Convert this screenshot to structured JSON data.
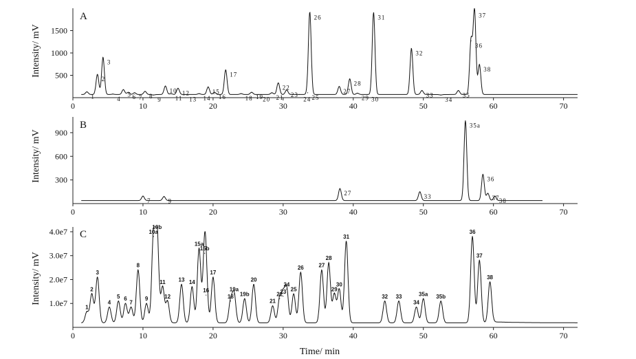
{
  "chart_data": [
    {
      "type": "line",
      "panel": "A",
      "ylabel": "Intensity/ mV",
      "xlim": [
        0,
        72
      ],
      "ylim": [
        0,
        2000
      ],
      "xticks": [
        0,
        10,
        20,
        30,
        40,
        50,
        60,
        70
      ],
      "yticks": [
        500,
        1000,
        1500
      ],
      "peaks": [
        {
          "label": "1",
          "x": 2.0,
          "y": 130
        },
        {
          "label": "2",
          "x": 3.5,
          "y": 520
        },
        {
          "label": "3",
          "x": 4.3,
          "y": 900
        },
        {
          "label": "4",
          "x": 5.7,
          "y": 80
        },
        {
          "label": "5",
          "x": 7.2,
          "y": 180
        },
        {
          "label": "6",
          "x": 7.9,
          "y": 120
        },
        {
          "label": "7",
          "x": 8.8,
          "y": 110
        },
        {
          "label": "8",
          "x": 10.3,
          "y": 140
        },
        {
          "label": "9",
          "x": 11.5,
          "y": 60
        },
        {
          "label": "10",
          "x": 13.2,
          "y": 260
        },
        {
          "label": "11",
          "x": 14.0,
          "y": 90
        },
        {
          "label": "12",
          "x": 15.0,
          "y": 210
        },
        {
          "label": "13",
          "x": 16.0,
          "y": 70
        },
        {
          "label": "14",
          "x": 18.0,
          "y": 90
        },
        {
          "label": "15",
          "x": 19.3,
          "y": 240
        },
        {
          "label": "16",
          "x": 20.2,
          "y": 120
        },
        {
          "label": "17",
          "x": 21.8,
          "y": 620
        },
        {
          "label": "18",
          "x": 24.0,
          "y": 90
        },
        {
          "label": "19",
          "x": 25.5,
          "y": 120
        },
        {
          "label": "20",
          "x": 26.5,
          "y": 70
        },
        {
          "label": "21",
          "x": 28.4,
          "y": 110
        },
        {
          "label": "22",
          "x": 29.3,
          "y": 330
        },
        {
          "label": "23",
          "x": 30.5,
          "y": 170
        },
        {
          "label": "24",
          "x": 32.3,
          "y": 70
        },
        {
          "label": "25",
          "x": 33.5,
          "y": 110
        },
        {
          "label": "26",
          "x": 33.8,
          "y": 1900
        },
        {
          "label": "27",
          "x": 38.0,
          "y": 250
        },
        {
          "label": "28",
          "x": 39.5,
          "y": 420
        },
        {
          "label": "29",
          "x": 40.6,
          "y": 100
        },
        {
          "label": "30",
          "x": 42.0,
          "y": 70
        },
        {
          "label": "31",
          "x": 42.9,
          "y": 1900
        },
        {
          "label": "32",
          "x": 48.3,
          "y": 1100
        },
        {
          "label": "33",
          "x": 49.8,
          "y": 160
        },
        {
          "label": "34",
          "x": 52.5,
          "y": 60
        },
        {
          "label": "35",
          "x": 55.0,
          "y": 160
        },
        {
          "label": "36",
          "x": 56.8,
          "y": 1270
        },
        {
          "label": "37",
          "x": 57.3,
          "y": 1950
        },
        {
          "label": "38",
          "x": 58.0,
          "y": 740
        }
      ]
    },
    {
      "type": "line",
      "panel": "B",
      "ylabel": "Intensity/ mV",
      "xlim": [
        0,
        72
      ],
      "ylim": [
        0,
        1100
      ],
      "xticks": [
        0,
        10,
        20,
        30,
        40,
        50,
        60,
        70
      ],
      "yticks": [
        300,
        600,
        900
      ],
      "peaks": [
        {
          "label": "7",
          "x": 10.0,
          "y": 95
        },
        {
          "label": "9",
          "x": 13.0,
          "y": 90
        },
        {
          "label": "27",
          "x": 38.1,
          "y": 190
        },
        {
          "label": "33",
          "x": 49.5,
          "y": 150
        },
        {
          "label": "35a",
          "x": 56.0,
          "y": 1050
        },
        {
          "label": "36",
          "x": 58.5,
          "y": 370
        },
        {
          "label": "37",
          "x": 59.2,
          "y": 130
        },
        {
          "label": "38",
          "x": 60.2,
          "y": 95
        }
      ]
    },
    {
      "type": "line",
      "panel": "C",
      "ylabel": "Intensity/ mV",
      "xlabel": "Time/ min",
      "xlim": [
        0,
        72
      ],
      "ylim": [
        0,
        42000000
      ],
      "xticks": [
        0,
        10,
        20,
        30,
        40,
        50,
        60,
        70
      ],
      "ytick_labels": [
        "1.0e7",
        "2.0e7",
        "3.0e7",
        "4.0e7"
      ],
      "peaks": [
        {
          "label": "1",
          "x": 2.0,
          "y": 6500000
        },
        {
          "label": "2",
          "x": 2.7,
          "y": 14000000
        },
        {
          "label": "3",
          "x": 3.5,
          "y": 21000000
        },
        {
          "label": "4",
          "x": 5.2,
          "y": 8500000
        },
        {
          "label": "5",
          "x": 6.5,
          "y": 11000000
        },
        {
          "label": "6",
          "x": 7.5,
          "y": 10000000
        },
        {
          "label": "7",
          "x": 8.3,
          "y": 8500000
        },
        {
          "label": "8",
          "x": 9.3,
          "y": 24000000
        },
        {
          "label": "9",
          "x": 10.5,
          "y": 10000000
        },
        {
          "label": "10a",
          "x": 11.5,
          "y": 38000000
        },
        {
          "label": "10b",
          "x": 12.0,
          "y": 40000000
        },
        {
          "label": "11",
          "x": 12.8,
          "y": 17000000
        },
        {
          "label": "12",
          "x": 13.5,
          "y": 11000000
        },
        {
          "label": "13",
          "x": 15.5,
          "y": 18000000
        },
        {
          "label": "14",
          "x": 17.0,
          "y": 17000000
        },
        {
          "label": "15a",
          "x": 18.0,
          "y": 33000000
        },
        {
          "label": "15b",
          "x": 18.8,
          "y": 31000000
        },
        {
          "label": "16",
          "x": 19.0,
          "y": 13500000
        },
        {
          "label": "17",
          "x": 20.0,
          "y": 21000000
        },
        {
          "label": "18",
          "x": 22.5,
          "y": 11000000
        },
        {
          "label": "19a",
          "x": 23.0,
          "y": 14000000
        },
        {
          "label": "19b",
          "x": 24.5,
          "y": 12000000
        },
        {
          "label": "20",
          "x": 25.8,
          "y": 18000000
        },
        {
          "label": "21",
          "x": 28.5,
          "y": 9000000
        },
        {
          "label": "22",
          "x": 29.5,
          "y": 12000000
        },
        {
          "label": "23",
          "x": 30.0,
          "y": 13000000
        },
        {
          "label": "24",
          "x": 30.5,
          "y": 16000000
        },
        {
          "label": "25",
          "x": 31.5,
          "y": 14000000
        },
        {
          "label": "26",
          "x": 32.5,
          "y": 23000000
        },
        {
          "label": "27",
          "x": 35.5,
          "y": 24000000
        },
        {
          "label": "28",
          "x": 36.5,
          "y": 27000000
        },
        {
          "label": "29",
          "x": 37.3,
          "y": 14000000
        },
        {
          "label": "30",
          "x": 38.0,
          "y": 16000000
        },
        {
          "label": "31",
          "x": 39.0,
          "y": 36000000
        },
        {
          "label": "32",
          "x": 44.5,
          "y": 11000000
        },
        {
          "label": "33",
          "x": 46.5,
          "y": 11000000
        },
        {
          "label": "34",
          "x": 49.0,
          "y": 8500000
        },
        {
          "label": "35a",
          "x": 50.0,
          "y": 12000000
        },
        {
          "label": "35b",
          "x": 52.5,
          "y": 11000000
        },
        {
          "label": "36",
          "x": 57.0,
          "y": 38000000
        },
        {
          "label": "37",
          "x": 58.0,
          "y": 28000000
        },
        {
          "label": "38",
          "x": 59.5,
          "y": 19000000
        }
      ]
    }
  ]
}
